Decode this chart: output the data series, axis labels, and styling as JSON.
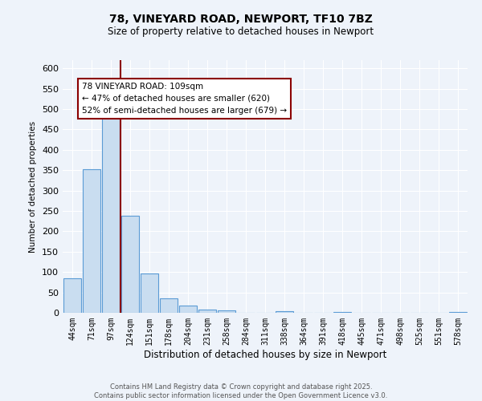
{
  "title": "78, VINEYARD ROAD, NEWPORT, TF10 7BZ",
  "subtitle": "Size of property relative to detached houses in Newport",
  "xlabel": "Distribution of detached houses by size in Newport",
  "ylabel": "Number of detached properties",
  "bar_color": "#c9ddf0",
  "bar_edge_color": "#5b9bd5",
  "background_color": "#eef3fa",
  "grid_color": "#ffffff",
  "categories": [
    "44sqm",
    "71sqm",
    "97sqm",
    "124sqm",
    "151sqm",
    "178sqm",
    "204sqm",
    "231sqm",
    "258sqm",
    "284sqm",
    "311sqm",
    "338sqm",
    "364sqm",
    "391sqm",
    "418sqm",
    "445sqm",
    "471sqm",
    "498sqm",
    "525sqm",
    "551sqm",
    "578sqm"
  ],
  "values": [
    85,
    352,
    480,
    238,
    97,
    35,
    17,
    7,
    5,
    0,
    0,
    4,
    0,
    0,
    2,
    0,
    0,
    0,
    0,
    0,
    2
  ],
  "ylim": [
    0,
    620
  ],
  "yticks": [
    0,
    50,
    100,
    150,
    200,
    250,
    300,
    350,
    400,
    450,
    500,
    550,
    600
  ],
  "vline_x": 2.5,
  "vline_color": "#8b0000",
  "annotation_title": "78 VINEYARD ROAD: 109sqm",
  "annotation_line1": "← 47% of detached houses are smaller (620)",
  "annotation_line2": "52% of semi-detached houses are larger (679) →",
  "annotation_box_color": "#ffffff",
  "annotation_box_edge": "#8b0000",
  "footer_line1": "Contains HM Land Registry data © Crown copyright and database right 2025.",
  "footer_line2": "Contains public sector information licensed under the Open Government Licence v3.0."
}
